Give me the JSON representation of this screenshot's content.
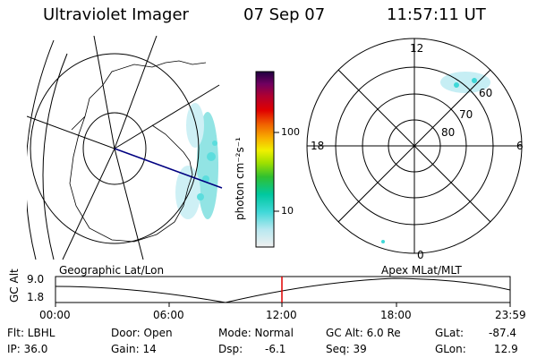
{
  "header": {
    "instrument": "Ultraviolet Imager",
    "date": "07 Sep 07",
    "time": "11:57:11 UT"
  },
  "left_map": {
    "caption": "Geographic Lat/Lon"
  },
  "right_map": {
    "caption": "Apex MLat/MLT",
    "mlt_labels": {
      "top": "12",
      "left": "18",
      "right": "6",
      "bottom": "0"
    },
    "mlat_labels": [
      "60",
      "70",
      "80"
    ]
  },
  "colorbar": {
    "unit_label": "photon cm⁻²s⁻¹",
    "tick_labels": [
      "100",
      "10"
    ],
    "scale": "log",
    "colors": [
      "#f0f0f0",
      "#b8e8f0",
      "#40d8d8",
      "#00c8a0",
      "#30c030",
      "#a0e000",
      "#f0f000",
      "#f8b000",
      "#f06000",
      "#e00000",
      "#b00030",
      "#700060",
      "#200040"
    ]
  },
  "altitude_plot": {
    "ylabel": "GC Alt",
    "y_ticks": [
      "9.0",
      "1.8"
    ],
    "x_ticks": [
      "00:00",
      "06:00",
      "12:00",
      "18:00",
      "23:59"
    ],
    "current_marker_time": "11:57",
    "marker_color": "#e00000"
  },
  "info": {
    "row1": {
      "filter": "Flt: LBHL",
      "door": "Door: Open",
      "mode": "Mode: Normal",
      "gc_alt": "GC Alt: 6.0 Re",
      "glat_label": "GLat:",
      "glat_value": "-87.4"
    },
    "row2": {
      "ip": "IP: 36.0",
      "gain": "Gain: 14",
      "dsp_label": "Dsp:",
      "dsp_value": "-6.1",
      "seq": "Seq: 39",
      "glon_label": "GLon:",
      "glon_value": "12.9"
    }
  }
}
